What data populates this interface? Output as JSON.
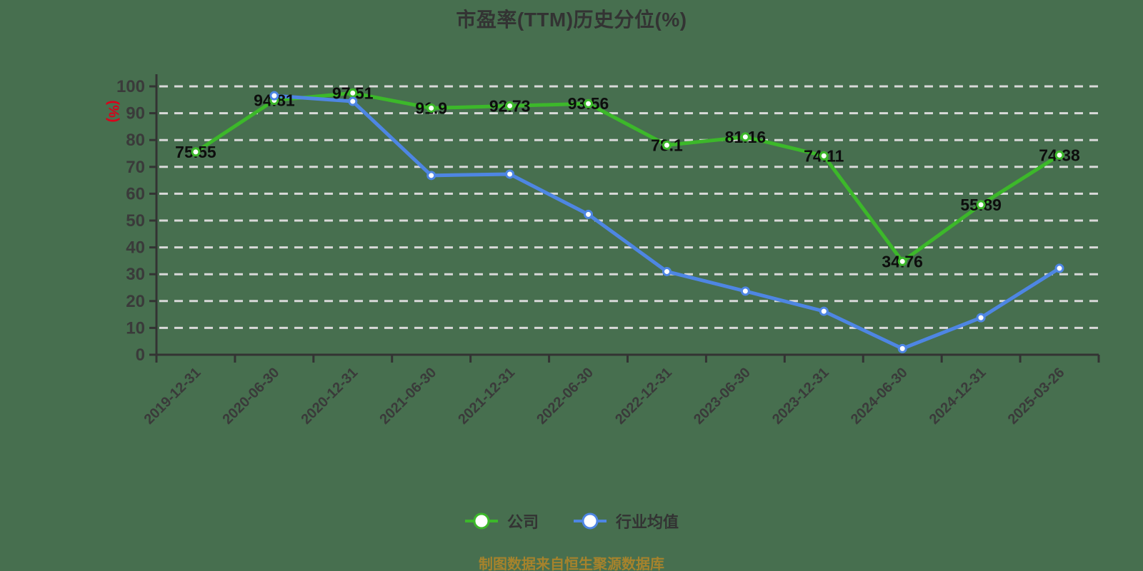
{
  "page": {
    "background": "#476F4F"
  },
  "colors": {
    "background": "#476F4F",
    "grid": "#D9D9D9",
    "axis": "#333333",
    "tick_label": "#3A3A3A",
    "value_label": "#0D0D0D",
    "title": "#333333",
    "legend_text": "#333333",
    "y_unit": "#D9001B",
    "footer": "#A6832C",
    "company_green": "#3CB82A",
    "industry_blue": "#4E86E3"
  },
  "chart_data": {
    "type": "line",
    "title": "市盈率(TTM)历史分位(%)",
    "y_axis_label": "(%)",
    "xlabel": "",
    "ylabel": "(%)",
    "ylim": [
      0,
      100
    ],
    "y_ticks": [
      0,
      10,
      20,
      30,
      40,
      50,
      60,
      70,
      80,
      90,
      100
    ],
    "grid": "horizontal dashed",
    "legend_position": "bottom",
    "categories": [
      "2019-12-31",
      "2020-06-30",
      "2020-12-31",
      "2021-06-30",
      "2021-12-31",
      "2022-06-30",
      "2022-12-31",
      "2023-06-30",
      "2023-12-31",
      "2024-06-30",
      "2024-12-31",
      "2025-03-26"
    ],
    "series": [
      {
        "name": "公司",
        "color": "#3CB82A",
        "values": [
          75.55,
          94.81,
          97.51,
          91.9,
          92.73,
          93.56,
          78.1,
          81.16,
          74.11,
          34.76,
          55.89,
          74.38
        ],
        "point_labels": [
          "75.55",
          "94.81",
          "97.51",
          "91.9",
          "92.73",
          "93.56",
          "78.1",
          "81.16",
          "74.11",
          "34.76",
          "55.89",
          "74.38"
        ]
      },
      {
        "name": "行业均值",
        "color": "#4E86E3",
        "values": [
          null,
          96.5,
          94.4,
          66.8,
          67.3,
          52.3,
          31.0,
          23.7,
          16.2,
          2.3,
          13.8,
          32.2
        ]
      }
    ],
    "footer": "制图数据来自恒生聚源数据库"
  }
}
